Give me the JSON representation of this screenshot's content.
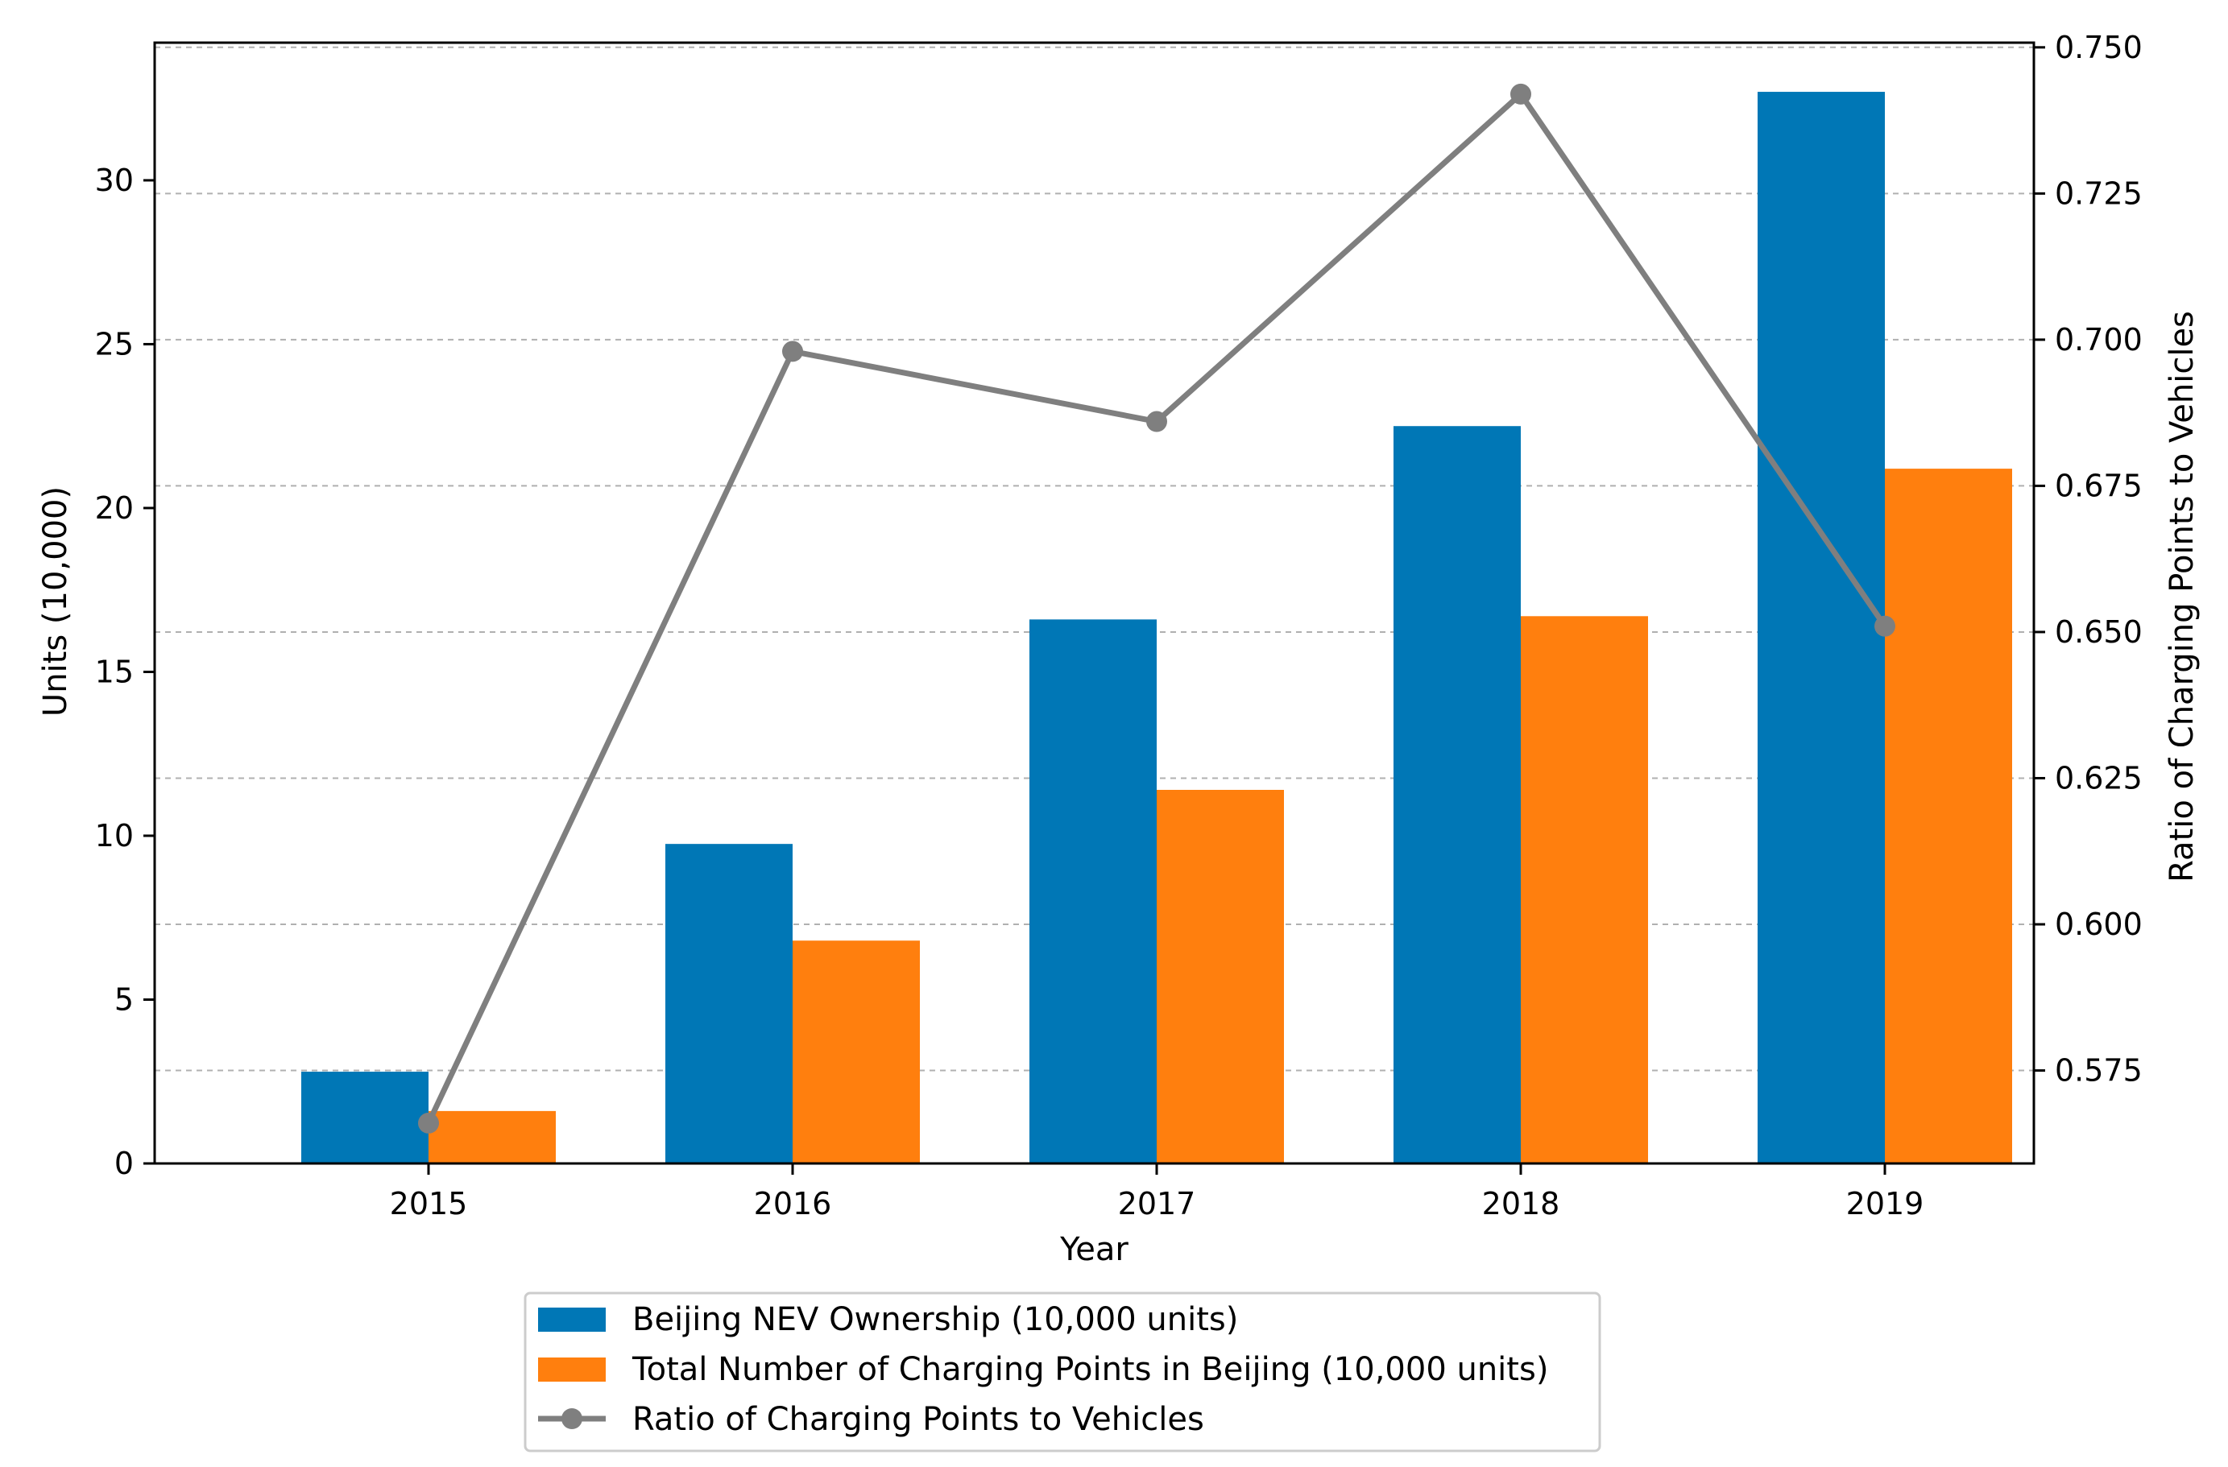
{
  "colors": {
    "nev": "#0077b6",
    "charging": "#ff7f0e",
    "ratio": "#7f7f7f",
    "grid": "#b0b0b0",
    "axis": "#000000"
  },
  "chart_data": {
    "type": "bar",
    "categories": [
      "2015",
      "2016",
      "2017",
      "2018",
      "2019"
    ],
    "xlabel": "Year",
    "ylabel": "Units (10,000)",
    "y2label": "Ratio of Charging Points to Vehicles",
    "ylim": [
      0,
      34.2
    ],
    "y2lim": [
      0.5591,
      0.7508
    ],
    "yticks": [
      0,
      5,
      10,
      15,
      20,
      25,
      30
    ],
    "y2ticks": [
      0.575,
      0.6,
      0.625,
      0.65,
      0.675,
      0.7,
      0.725,
      0.75
    ],
    "y2tick_labels": [
      "0.575",
      "0.600",
      "0.625",
      "0.650",
      "0.675",
      "0.700",
      "0.725",
      "0.750"
    ],
    "grid": "horizontal dashed on secondary axis ticks",
    "legend_position": "bottom-center below axes",
    "series": [
      {
        "name": "Beijing NEV Ownership (10,000 units)",
        "type": "bar",
        "axis": "left",
        "values": [
          2.8,
          9.75,
          16.6,
          22.5,
          32.7
        ]
      },
      {
        "name": "Total Number of Charging Points in Beijing (10,000 units)",
        "type": "bar",
        "axis": "left",
        "values": [
          1.6,
          6.8,
          11.4,
          16.7,
          21.2
        ]
      },
      {
        "name": "Ratio of Charging Points to Vehicles",
        "type": "line",
        "axis": "right",
        "marker": "circle",
        "values": [
          0.566,
          0.698,
          0.686,
          0.742,
          0.651
        ]
      }
    ]
  }
}
